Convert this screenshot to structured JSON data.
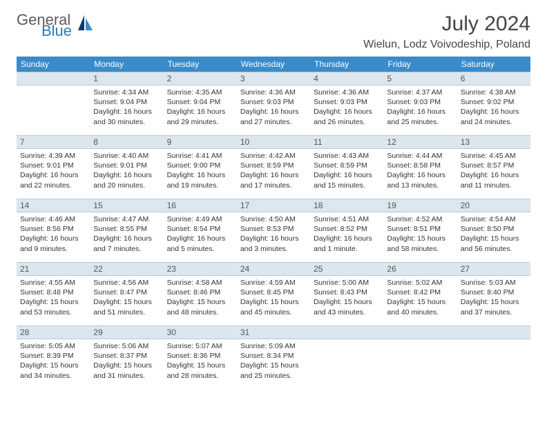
{
  "logo": {
    "general": "General",
    "blue": "Blue"
  },
  "title": "July 2024",
  "location": "Wielun, Lodz Voivodeship, Poland",
  "colors": {
    "header_bg": "#3a8bc9",
    "header_text": "#ffffff",
    "daynum_bg": "#dbe6ef",
    "daynum_border": "#b9cad8",
    "text": "#333333",
    "logo_general": "#5a5a5a",
    "logo_blue": "#2a7ab8",
    "sail_dark": "#0d3a66",
    "sail_light": "#3a8bc9"
  },
  "weekdays": [
    "Sunday",
    "Monday",
    "Tuesday",
    "Wednesday",
    "Thursday",
    "Friday",
    "Saturday"
  ],
  "days": [
    {
      "n": 1,
      "sunrise": "4:34 AM",
      "sunset": "9:04 PM",
      "daylight": "16 hours and 30 minutes."
    },
    {
      "n": 2,
      "sunrise": "4:35 AM",
      "sunset": "9:04 PM",
      "daylight": "16 hours and 29 minutes."
    },
    {
      "n": 3,
      "sunrise": "4:36 AM",
      "sunset": "9:03 PM",
      "daylight": "16 hours and 27 minutes."
    },
    {
      "n": 4,
      "sunrise": "4:36 AM",
      "sunset": "9:03 PM",
      "daylight": "16 hours and 26 minutes."
    },
    {
      "n": 5,
      "sunrise": "4:37 AM",
      "sunset": "9:03 PM",
      "daylight": "16 hours and 25 minutes."
    },
    {
      "n": 6,
      "sunrise": "4:38 AM",
      "sunset": "9:02 PM",
      "daylight": "16 hours and 24 minutes."
    },
    {
      "n": 7,
      "sunrise": "4:39 AM",
      "sunset": "9:01 PM",
      "daylight": "16 hours and 22 minutes."
    },
    {
      "n": 8,
      "sunrise": "4:40 AM",
      "sunset": "9:01 PM",
      "daylight": "16 hours and 20 minutes."
    },
    {
      "n": 9,
      "sunrise": "4:41 AM",
      "sunset": "9:00 PM",
      "daylight": "16 hours and 19 minutes."
    },
    {
      "n": 10,
      "sunrise": "4:42 AM",
      "sunset": "8:59 PM",
      "daylight": "16 hours and 17 minutes."
    },
    {
      "n": 11,
      "sunrise": "4:43 AM",
      "sunset": "8:59 PM",
      "daylight": "16 hours and 15 minutes."
    },
    {
      "n": 12,
      "sunrise": "4:44 AM",
      "sunset": "8:58 PM",
      "daylight": "16 hours and 13 minutes."
    },
    {
      "n": 13,
      "sunrise": "4:45 AM",
      "sunset": "8:57 PM",
      "daylight": "16 hours and 11 minutes."
    },
    {
      "n": 14,
      "sunrise": "4:46 AM",
      "sunset": "8:56 PM",
      "daylight": "16 hours and 9 minutes."
    },
    {
      "n": 15,
      "sunrise": "4:47 AM",
      "sunset": "8:55 PM",
      "daylight": "16 hours and 7 minutes."
    },
    {
      "n": 16,
      "sunrise": "4:49 AM",
      "sunset": "8:54 PM",
      "daylight": "16 hours and 5 minutes."
    },
    {
      "n": 17,
      "sunrise": "4:50 AM",
      "sunset": "8:53 PM",
      "daylight": "16 hours and 3 minutes."
    },
    {
      "n": 18,
      "sunrise": "4:51 AM",
      "sunset": "8:52 PM",
      "daylight": "16 hours and 1 minute."
    },
    {
      "n": 19,
      "sunrise": "4:52 AM",
      "sunset": "8:51 PM",
      "daylight": "15 hours and 58 minutes."
    },
    {
      "n": 20,
      "sunrise": "4:54 AM",
      "sunset": "8:50 PM",
      "daylight": "15 hours and 56 minutes."
    },
    {
      "n": 21,
      "sunrise": "4:55 AM",
      "sunset": "8:48 PM",
      "daylight": "15 hours and 53 minutes."
    },
    {
      "n": 22,
      "sunrise": "4:56 AM",
      "sunset": "8:47 PM",
      "daylight": "15 hours and 51 minutes."
    },
    {
      "n": 23,
      "sunrise": "4:58 AM",
      "sunset": "8:46 PM",
      "daylight": "15 hours and 48 minutes."
    },
    {
      "n": 24,
      "sunrise": "4:59 AM",
      "sunset": "8:45 PM",
      "daylight": "15 hours and 45 minutes."
    },
    {
      "n": 25,
      "sunrise": "5:00 AM",
      "sunset": "8:43 PM",
      "daylight": "15 hours and 43 minutes."
    },
    {
      "n": 26,
      "sunrise": "5:02 AM",
      "sunset": "8:42 PM",
      "daylight": "15 hours and 40 minutes."
    },
    {
      "n": 27,
      "sunrise": "5:03 AM",
      "sunset": "8:40 PM",
      "daylight": "15 hours and 37 minutes."
    },
    {
      "n": 28,
      "sunrise": "5:05 AM",
      "sunset": "8:39 PM",
      "daylight": "15 hours and 34 minutes."
    },
    {
      "n": 29,
      "sunrise": "5:06 AM",
      "sunset": "8:37 PM",
      "daylight": "15 hours and 31 minutes."
    },
    {
      "n": 30,
      "sunrise": "5:07 AM",
      "sunset": "8:36 PM",
      "daylight": "15 hours and 28 minutes."
    },
    {
      "n": 31,
      "sunrise": "5:09 AM",
      "sunset": "8:34 PM",
      "daylight": "15 hours and 25 minutes."
    }
  ],
  "labels": {
    "sunrise": "Sunrise:",
    "sunset": "Sunset:",
    "daylight": "Daylight:"
  },
  "layout": {
    "start_weekday": 1,
    "rows": 5,
    "cols": 7
  }
}
